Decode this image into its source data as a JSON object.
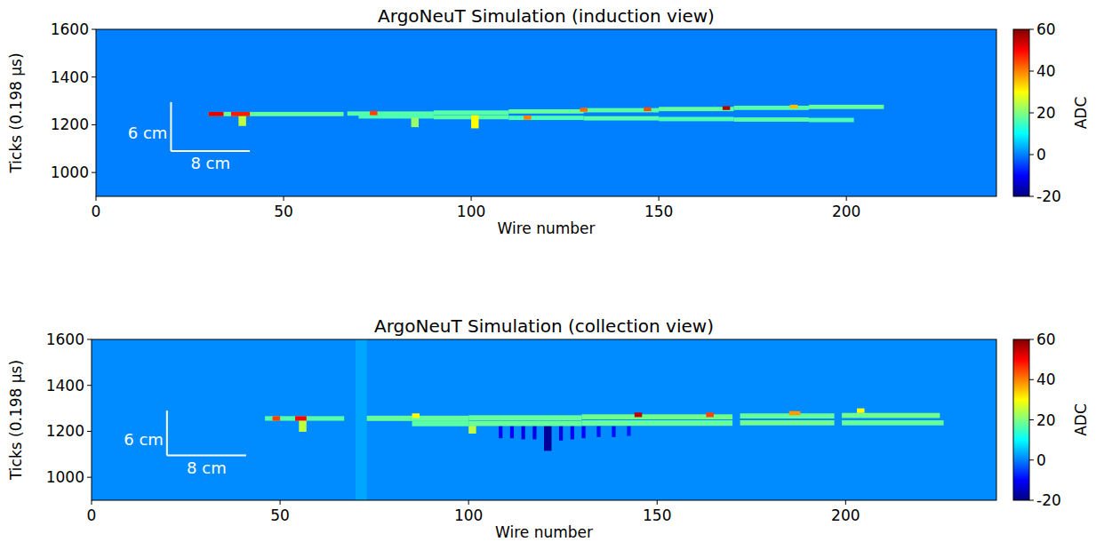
{
  "chart_data": [
    {
      "type": "heatmap",
      "title": "ArgoNeuT Simulation (induction view)",
      "x_label": "Wire number",
      "y_label": "Ticks (0.198 μs)",
      "xlim": [
        0,
        240
      ],
      "xticks": [
        0,
        50,
        100,
        150,
        200
      ],
      "ylim": [
        900,
        1600
      ],
      "yticks": [
        1000,
        1200,
        1400,
        1600
      ],
      "background": 0,
      "colorbar": {
        "label": "ADC",
        "range": [
          -20,
          60
        ],
        "ticks": [
          -20,
          0,
          20,
          40,
          60
        ]
      },
      "scale_bars": [
        {
          "label": "6 cm",
          "wires": [
            20,
            20
          ],
          "ticks": [
            1090,
            1295
          ]
        },
        {
          "label": "8 cm",
          "wires": [
            20,
            41
          ],
          "ticks": [
            1090,
            1090
          ]
        }
      ],
      "segments": [
        {
          "wires": [
            30,
            66
          ],
          "ticks": [
            1236,
            1254
          ],
          "value": 18
        },
        {
          "wires": [
            30,
            34
          ],
          "ticks": [
            1236,
            1254
          ],
          "value": 52
        },
        {
          "wires": [
            36,
            41
          ],
          "ticks": [
            1236,
            1254
          ],
          "value": 48
        },
        {
          "wires": [
            38,
            40
          ],
          "ticks": [
            1195,
            1236
          ],
          "value": 25
        },
        {
          "wires": [
            67,
            90
          ],
          "ticks": [
            1238,
            1256
          ],
          "value": 17
        },
        {
          "wires": [
            90,
            110
          ],
          "ticks": [
            1242,
            1260
          ],
          "value": 17
        },
        {
          "wires": [
            110,
            130
          ],
          "ticks": [
            1247,
            1265
          ],
          "value": 18
        },
        {
          "wires": [
            130,
            150
          ],
          "ticks": [
            1252,
            1270
          ],
          "value": 17
        },
        {
          "wires": [
            150,
            170
          ],
          "ticks": [
            1257,
            1275
          ],
          "value": 18
        },
        {
          "wires": [
            170,
            190
          ],
          "ticks": [
            1262,
            1280
          ],
          "value": 17
        },
        {
          "wires": [
            190,
            210
          ],
          "ticks": [
            1266,
            1284
          ],
          "value": 18
        },
        {
          "wires": [
            70,
            90
          ],
          "ticks": [
            1226,
            1244
          ],
          "value": 16
        },
        {
          "wires": [
            90,
            110
          ],
          "ticks": [
            1223,
            1241
          ],
          "value": 17
        },
        {
          "wires": [
            110,
            130
          ],
          "ticks": [
            1220,
            1238
          ],
          "value": 16
        },
        {
          "wires": [
            130,
            150
          ],
          "ticks": [
            1218,
            1236
          ],
          "value": 17
        },
        {
          "wires": [
            150,
            170
          ],
          "ticks": [
            1215,
            1233
          ],
          "value": 16
        },
        {
          "wires": [
            170,
            190
          ],
          "ticks": [
            1213,
            1231
          ],
          "value": 17
        },
        {
          "wires": [
            190,
            202
          ],
          "ticks": [
            1211,
            1229
          ],
          "value": 16
        },
        {
          "wires": [
            73,
            75
          ],
          "ticks": [
            1240,
            1258
          ],
          "value": 45
        },
        {
          "wires": [
            84,
            86
          ],
          "ticks": [
            1190,
            1230
          ],
          "value": 22
        },
        {
          "wires": [
            100,
            102
          ],
          "ticks": [
            1185,
            1240
          ],
          "value": 30
        },
        {
          "wires": [
            114,
            116
          ],
          "ticks": [
            1221,
            1239
          ],
          "value": 40
        },
        {
          "wires": [
            129,
            131
          ],
          "ticks": [
            1255,
            1271
          ],
          "value": 42
        },
        {
          "wires": [
            146,
            148
          ],
          "ticks": [
            1257,
            1273
          ],
          "value": 44
        },
        {
          "wires": [
            167,
            169
          ],
          "ticks": [
            1262,
            1278
          ],
          "value": 56
        },
        {
          "wires": [
            185,
            187
          ],
          "ticks": [
            1268,
            1284
          ],
          "value": 35
        }
      ]
    },
    {
      "type": "heatmap",
      "title": "ArgoNeuT Simulation (collection view)",
      "x_label": "Wire number",
      "y_label": "Ticks (0.198 μs)",
      "xlim": [
        0,
        240
      ],
      "xticks": [
        0,
        50,
        100,
        150,
        200
      ],
      "ylim": [
        900,
        1600
      ],
      "yticks": [
        1000,
        1200,
        1400,
        1600
      ],
      "background": 1,
      "colorbar": {
        "label": "ADC",
        "range": [
          -20,
          60
        ],
        "ticks": [
          -20,
          0,
          20,
          40,
          60
        ]
      },
      "scale_bars": [
        {
          "label": "6 cm",
          "wires": [
            20,
            20
          ],
          "ticks": [
            1095,
            1290
          ]
        },
        {
          "label": "8 cm",
          "wires": [
            20,
            41
          ],
          "ticks": [
            1095,
            1095
          ]
        }
      ],
      "segments": [
        {
          "wires": [
            70,
            73
          ],
          "ticks": [
            900,
            1600
          ],
          "value": 3
        },
        {
          "wires": [
            46,
            67
          ],
          "ticks": [
            1246,
            1266
          ],
          "value": 17
        },
        {
          "wires": [
            48,
            50
          ],
          "ticks": [
            1246,
            1266
          ],
          "value": 45
        },
        {
          "wires": [
            54,
            57
          ],
          "ticks": [
            1246,
            1266
          ],
          "value": 50
        },
        {
          "wires": [
            55,
            57
          ],
          "ticks": [
            1198,
            1246
          ],
          "value": 25
        },
        {
          "wires": [
            73,
            100
          ],
          "ticks": [
            1245,
            1268
          ],
          "value": 18
        },
        {
          "wires": [
            100,
            130
          ],
          "ticks": [
            1248,
            1270
          ],
          "value": 18
        },
        {
          "wires": [
            130,
            170
          ],
          "ticks": [
            1252,
            1274
          ],
          "value": 19
        },
        {
          "wires": [
            172,
            197
          ],
          "ticks": [
            1256,
            1278
          ],
          "value": 18
        },
        {
          "wires": [
            199,
            225
          ],
          "ticks": [
            1258,
            1280
          ],
          "value": 19
        },
        {
          "wires": [
            85,
            100
          ],
          "ticks": [
            1222,
            1246
          ],
          "value": 17
        },
        {
          "wires": [
            100,
            130
          ],
          "ticks": [
            1223,
            1246
          ],
          "value": 18
        },
        {
          "wires": [
            130,
            170
          ],
          "ticks": [
            1224,
            1248
          ],
          "value": 18
        },
        {
          "wires": [
            172,
            197
          ],
          "ticks": [
            1226,
            1248
          ],
          "value": 19
        },
        {
          "wires": [
            199,
            226
          ],
          "ticks": [
            1226,
            1248
          ],
          "value": 18
        },
        {
          "wires": [
            100,
            102
          ],
          "ticks": [
            1190,
            1224
          ],
          "value": 25
        },
        {
          "wires": [
            85,
            87
          ],
          "ticks": [
            1258,
            1278
          ],
          "value": 30
        },
        {
          "wires": [
            144,
            146
          ],
          "ticks": [
            1262,
            1282
          ],
          "value": 55
        },
        {
          "wires": [
            163,
            165
          ],
          "ticks": [
            1262,
            1282
          ],
          "value": 45
        },
        {
          "wires": [
            185,
            188
          ],
          "ticks": [
            1270,
            1288
          ],
          "value": 38
        },
        {
          "wires": [
            203,
            205
          ],
          "ticks": [
            1280,
            1300
          ],
          "value": 30
        },
        {
          "wires": [
            108,
            109
          ],
          "ticks": [
            1170,
            1222
          ],
          "value": -10
        },
        {
          "wires": [
            111,
            112
          ],
          "ticks": [
            1170,
            1222
          ],
          "value": -10
        },
        {
          "wires": [
            114,
            115
          ],
          "ticks": [
            1165,
            1222
          ],
          "value": -12
        },
        {
          "wires": [
            117,
            118
          ],
          "ticks": [
            1165,
            1222
          ],
          "value": -12
        },
        {
          "wires": [
            120,
            122
          ],
          "ticks": [
            1115,
            1222
          ],
          "value": -18
        },
        {
          "wires": [
            124,
            125
          ],
          "ticks": [
            1160,
            1222
          ],
          "value": -12
        },
        {
          "wires": [
            127,
            128
          ],
          "ticks": [
            1165,
            1222
          ],
          "value": -11
        },
        {
          "wires": [
            130,
            131
          ],
          "ticks": [
            1170,
            1222
          ],
          "value": -10
        },
        {
          "wires": [
            134,
            135
          ],
          "ticks": [
            1175,
            1222
          ],
          "value": -9
        },
        {
          "wires": [
            138,
            139
          ],
          "ticks": [
            1175,
            1222
          ],
          "value": -9
        },
        {
          "wires": [
            142,
            143
          ],
          "ticks": [
            1180,
            1222
          ],
          "value": -8
        }
      ]
    }
  ]
}
